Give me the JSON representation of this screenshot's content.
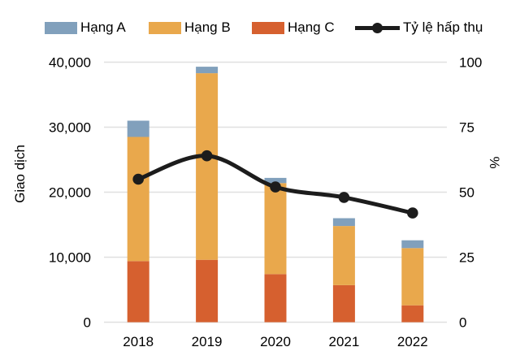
{
  "figure": {
    "background": "#ffffff",
    "grid_color": "#e0e0e0",
    "text_color": "#000000"
  },
  "legend": {
    "items": [
      {
        "label": "Hạng A",
        "symbol": "swatch",
        "color": "#81a0bc"
      },
      {
        "label": "Hạng B",
        "symbol": "swatch",
        "color": "#e9a84c"
      },
      {
        "label": "Hạng C",
        "symbol": "swatch",
        "color": "#d6602f"
      },
      {
        "label": "Tỷ lệ hấp thụ",
        "symbol": "line-dot",
        "color": "#1c1c1c"
      }
    ]
  },
  "chart_data": {
    "type": "bar",
    "stacked": true,
    "title": "",
    "categories": [
      "2018",
      "2019",
      "2020",
      "2021",
      "2022"
    ],
    "series": [
      {
        "name": "Hạng A",
        "color": "#81a0bc",
        "values": [
          2500,
          1000,
          800,
          1200,
          1200
        ]
      },
      {
        "name": "Hạng B",
        "color": "#e9a84c",
        "values": [
          19100,
          28700,
          14000,
          9100,
          8800
        ]
      },
      {
        "name": "Hạng C",
        "color": "#d6602f",
        "values": [
          9400,
          9600,
          7400,
          5700,
          2600
        ]
      }
    ],
    "stack_order_bottom_to_top": [
      "Hạng C",
      "Hạng B",
      "Hạng A"
    ],
    "line_series": {
      "name": "Tỷ lệ hấp thụ",
      "color": "#1c1c1c",
      "axis": "right",
      "marker": "circle",
      "values": [
        55,
        64,
        52,
        48,
        42
      ]
    },
    "left_axis": {
      "label": "Giao dịch",
      "min": 0,
      "max": 40000,
      "tick_labels": [
        "0",
        "10,000",
        "20,000",
        "30,000",
        "40,000"
      ]
    },
    "right_axis": {
      "label": "%",
      "min": 0,
      "max": 100,
      "tick_labels": [
        "0",
        "25",
        "50",
        "75",
        "100"
      ]
    },
    "grid": "horizontal",
    "legend_position": "top"
  }
}
